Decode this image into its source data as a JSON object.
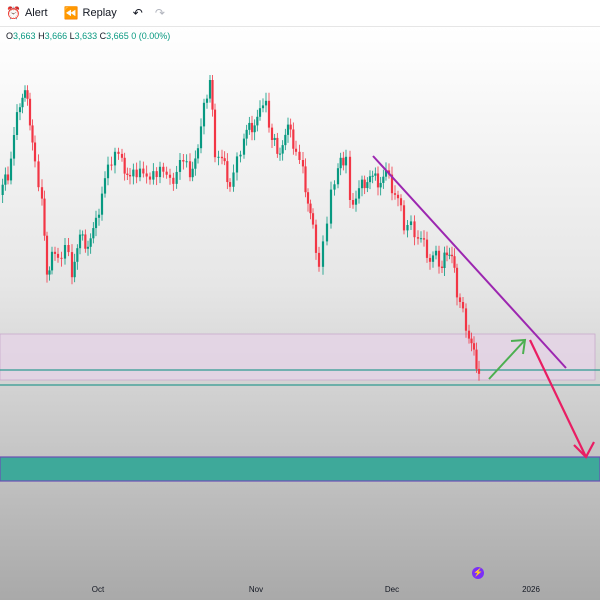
{
  "toolbar": {
    "alert_label": "Alert",
    "replay_label": "Replay",
    "icons": [
      "alarm-clock-icon",
      "replay-icon",
      "undo-icon",
      "redo-icon"
    ]
  },
  "ohlc": {
    "o_key": "O",
    "o_val": "3,663",
    "h_key": "H",
    "h_val": "3,666",
    "l_key": "L",
    "l_val": "3,633",
    "c_key": "C",
    "c_val": "3,665",
    "change": "0 (0.00%)"
  },
  "x_axis": {
    "labels": [
      "Oct",
      "Nov",
      "Dec",
      "2026"
    ]
  },
  "colors": {
    "up": "#089981",
    "down": "#f23645",
    "trendline": "#9c27b0",
    "projection_up": "#4caf50",
    "projection_down": "#e91e63",
    "resistance_zone": "#e7d9e8",
    "target_zone": "#3ea99a",
    "level_line": "#2f9a91"
  }
}
